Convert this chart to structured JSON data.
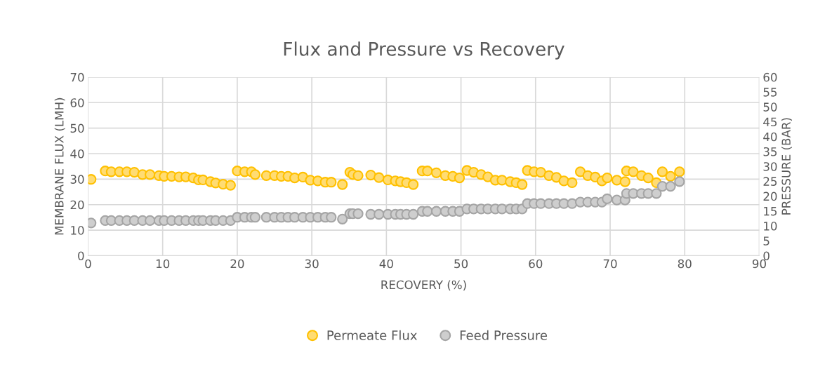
{
  "chart_data": {
    "type": "scatter",
    "title": "Flux and Pressure vs Recovery",
    "xlabel": "RECOVERY (%)",
    "ylabel": "MEMBRANE FLUX (LMH)",
    "y2label": "PRESSURE (BAR)",
    "x": [
      0.4,
      2.3,
      3.1,
      4.2,
      5.2,
      6.2,
      7.3,
      8.3,
      9.5,
      10.2,
      11.2,
      12.2,
      13.1,
      14.1,
      14.8,
      15.4,
      16.4,
      17.1,
      18.1,
      19.1,
      20.0,
      21.0,
      21.9,
      22.4,
      23.9,
      25.0,
      25.9,
      26.8,
      27.7,
      28.8,
      29.8,
      30.8,
      31.8,
      32.6,
      34.1,
      35.1,
      35.5,
      36.2,
      37.9,
      39.0,
      40.2,
      41.2,
      41.9,
      42.7,
      43.6,
      44.8,
      45.5,
      46.7,
      47.9,
      48.9,
      49.8,
      50.8,
      51.7,
      52.7,
      53.6,
      54.6,
      55.5,
      56.6,
      57.4,
      58.2,
      58.9,
      59.8,
      60.7,
      61.8,
      62.8,
      63.8,
      64.9,
      66.0,
      67.0,
      68.0,
      68.9,
      69.6,
      70.9,
      72.0,
      72.2,
      73.1,
      74.2,
      75.1,
      76.2,
      77.0,
      78.1,
      79.3
    ],
    "series": [
      {
        "name": "Permeate Flux",
        "color": "#ffc000",
        "values": [
          29.9,
          33.2,
          32.9,
          32.9,
          32.9,
          32.7,
          31.8,
          31.8,
          31.4,
          31.1,
          31.1,
          30.9,
          30.9,
          30.5,
          29.7,
          29.7,
          29.0,
          28.5,
          28.0,
          27.6,
          33.2,
          32.9,
          32.9,
          31.8,
          31.4,
          31.4,
          31.1,
          31.1,
          30.5,
          30.8,
          29.6,
          29.3,
          28.8,
          28.8,
          27.9,
          32.7,
          31.8,
          31.4,
          31.6,
          30.6,
          29.7,
          29.3,
          29.0,
          28.6,
          27.9,
          33.2,
          33.2,
          32.5,
          31.4,
          31.1,
          30.5,
          33.4,
          32.7,
          31.8,
          30.9,
          29.6,
          29.6,
          29.0,
          28.6,
          27.9,
          33.4,
          32.9,
          32.7,
          31.4,
          30.7,
          29.3,
          28.6,
          32.9,
          31.4,
          30.8,
          29.3,
          30.5,
          29.6,
          29.0,
          33.2,
          32.9,
          31.4,
          30.5,
          28.6,
          32.9,
          31.1,
          32.9
        ]
      },
      {
        "name": "Feed Pressure",
        "color": "#a5a5a5",
        "axis": "y2",
        "values": [
          11.0,
          11.8,
          11.8,
          11.8,
          11.8,
          11.8,
          11.8,
          11.8,
          11.8,
          11.8,
          11.8,
          11.8,
          11.8,
          11.8,
          11.8,
          11.8,
          11.8,
          11.8,
          11.8,
          11.8,
          12.9,
          12.9,
          12.9,
          12.9,
          12.9,
          12.9,
          12.9,
          12.9,
          12.9,
          12.9,
          12.9,
          12.9,
          12.9,
          12.9,
          12.3,
          14.1,
          14.1,
          14.1,
          13.9,
          13.9,
          13.9,
          13.9,
          13.9,
          13.9,
          13.9,
          14.9,
          14.9,
          14.9,
          14.9,
          14.9,
          14.9,
          15.7,
          15.7,
          15.7,
          15.7,
          15.7,
          15.7,
          15.7,
          15.7,
          15.7,
          17.5,
          17.5,
          17.5,
          17.5,
          17.5,
          17.5,
          17.5,
          18.0,
          18.0,
          18.0,
          18.0,
          19.1,
          18.7,
          18.7,
          20.9,
          20.9,
          20.9,
          20.9,
          20.9,
          23.3,
          23.3,
          24.9
        ]
      }
    ],
    "xlim": [
      0,
      90
    ],
    "xticks": [
      0,
      10,
      20,
      30,
      40,
      50,
      60,
      70,
      80,
      90
    ],
    "ylim": [
      0,
      70
    ],
    "yticks": [
      0,
      10,
      20,
      30,
      40,
      50,
      60,
      70
    ],
    "y2lim": [
      0,
      60
    ],
    "y2ticks": [
      0,
      5,
      10,
      15,
      20,
      25,
      30,
      35,
      40,
      45,
      50,
      55,
      60
    ],
    "grid": true,
    "legend": "bottom",
    "marker": "circle"
  }
}
